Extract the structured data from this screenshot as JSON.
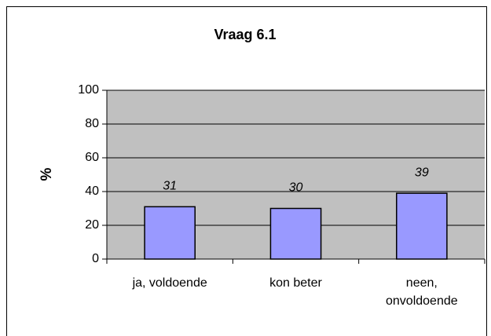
{
  "chart_data": {
    "type": "bar",
    "title": "Vraag 6.1",
    "y_label": "%",
    "categories": [
      "ja, voldoende",
      "kon beter",
      "neen, onvoldoende"
    ],
    "values": [
      31,
      30,
      39
    ],
    "color": "#9999ff",
    "ylim": [
      0,
      100
    ],
    "yticks": [
      0,
      20,
      40,
      60,
      80,
      100
    ],
    "grid": true
  }
}
